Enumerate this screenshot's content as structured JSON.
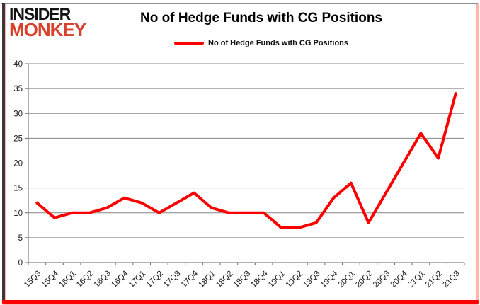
{
  "branding": {
    "line1": "INSIDER",
    "line2": "MONKEY"
  },
  "header": {
    "title": "No of Hedge Funds with CG Positions"
  },
  "legend": {
    "label": "No of Hedge Funds with CG Positions"
  },
  "colors": {
    "line_red": "#fe0000",
    "logo_red": "#d8422c",
    "frame_pink": "#ffb3ab",
    "frame_dark": "#383838",
    "frame_gray": "#8f8f8f",
    "gridline": "#858585",
    "axis": "#666666"
  },
  "chart_data": {
    "type": "line",
    "title": "No of Hedge Funds with CG Positions",
    "categories": [
      "15Q3",
      "15Q4",
      "16Q1",
      "16Q2",
      "16Q3",
      "16Q4",
      "17Q1",
      "17Q2",
      "17Q3",
      "17Q4",
      "18Q1",
      "18Q2",
      "18Q3",
      "18Q4",
      "19Q1",
      "19Q2",
      "19Q3",
      "19Q4",
      "20Q1",
      "20Q2",
      "20Q3",
      "20Q4",
      "21Q1",
      "21Q2",
      "21Q3"
    ],
    "series": [
      {
        "name": "No of Hedge Funds with CG Positions",
        "color": "#fe0000",
        "values": [
          12,
          9,
          10,
          10,
          11,
          13,
          12,
          10,
          12,
          14,
          11,
          10,
          10,
          10,
          7,
          7,
          8,
          13,
          16,
          8,
          14,
          20,
          26,
          21,
          34
        ]
      }
    ],
    "xlabel": "",
    "ylabel": "",
    "ylim": [
      0,
      40
    ],
    "yticks": [
      0,
      5,
      10,
      15,
      20,
      25,
      30,
      35,
      40
    ],
    "grid": true,
    "legend_position": "top",
    "x_tick_rotation": -45
  }
}
